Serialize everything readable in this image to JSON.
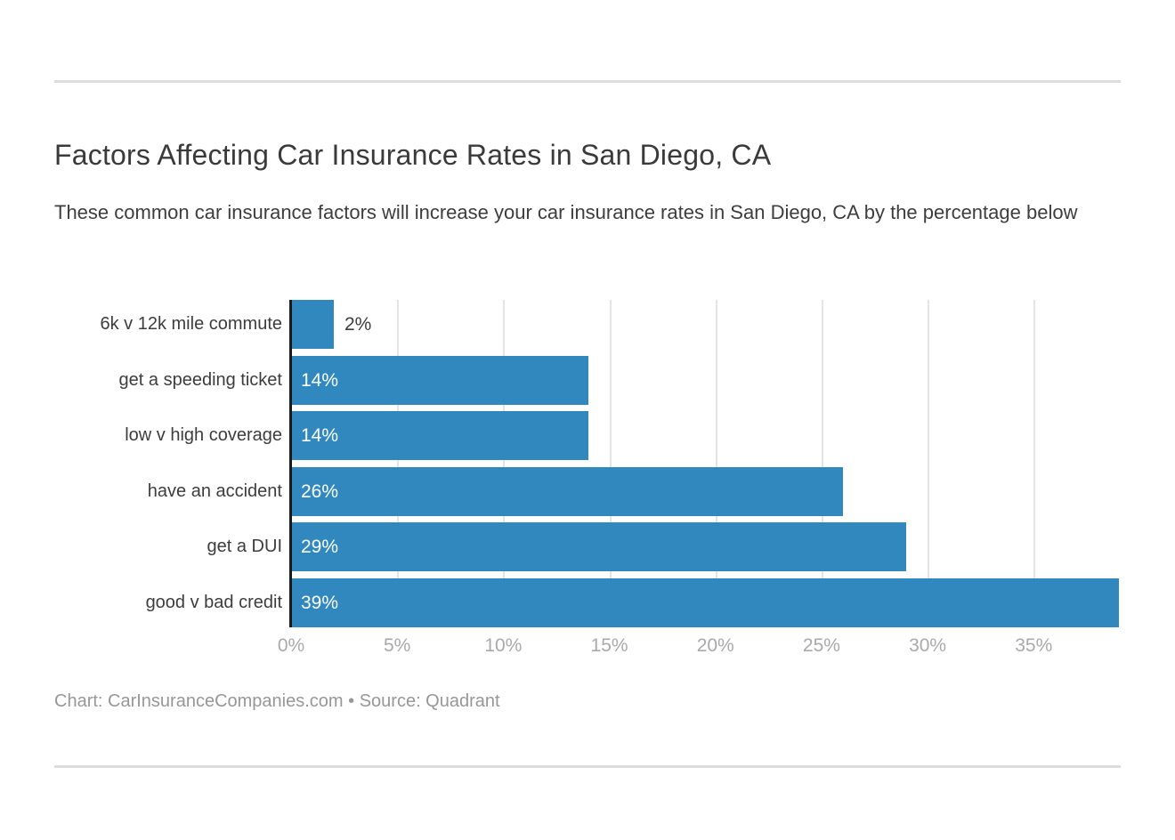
{
  "header": {
    "title": "Factors Affecting Car Insurance Rates in San Diego, CA",
    "subtitle": "These common car insurance factors will increase your car insurance rates in San Diego, CA by the percentage below"
  },
  "footer": {
    "credit": "Chart: CarInsuranceCompanies.com • Source: Quadrant"
  },
  "chart_data": {
    "type": "bar",
    "orientation": "horizontal",
    "title": "Factors Affecting Car Insurance Rates in San Diego, CA",
    "categories": [
      "6k v 12k mile commute",
      "get a speeding ticket",
      "low v high coverage",
      "have an accident",
      "get a DUI",
      "good v bad credit"
    ],
    "values": [
      2,
      14,
      14,
      26,
      29,
      39
    ],
    "value_labels": [
      "2%",
      "14%",
      "14%",
      "26%",
      "29%",
      "39%"
    ],
    "x_tick_values": [
      0,
      5,
      10,
      15,
      20,
      25,
      30,
      35
    ],
    "x_tick_labels": [
      "0%",
      "5%",
      "10%",
      "15%",
      "20%",
      "25%",
      "30%",
      "35%"
    ],
    "xlim": [
      0,
      39.1
    ],
    "grid": true,
    "legend": "none",
    "colors": {
      "bar": "#3188be",
      "axis": "#1a1a1a",
      "grid": "#e4e4e4",
      "tick": "#a9a9a9",
      "label": "#3d3d3d",
      "title": "#3a3a3a",
      "subtitle": "#3d3d3d",
      "footer": "#979797",
      "divider": "#dddddd",
      "value_inside": "#ffffff"
    }
  }
}
